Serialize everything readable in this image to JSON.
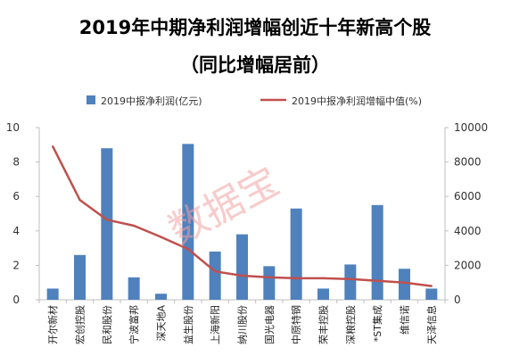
{
  "chart_data": {
    "type": "bar",
    "title": "2019年中期净利润增幅创近十年新高个股",
    "subtitle": "（同比增幅居前）",
    "categories": [
      "开尔新材",
      "宏创控股",
      "民和股份",
      "宁波富邦",
      "深天地A",
      "益生股份",
      "上海新阳",
      "纳川股份",
      "国光电器",
      "中原特钢",
      "荣丰控股",
      "深粮控股",
      "*ST集成",
      "维信诺",
      "天泽信息"
    ],
    "series": [
      {
        "name": "2019中报净利润(亿元)",
        "type": "bar",
        "axis": "left",
        "color": "#4f81bd",
        "values": [
          0.65,
          2.6,
          8.8,
          1.3,
          0.35,
          9.05,
          2.8,
          3.8,
          1.95,
          5.3,
          0.65,
          2.05,
          5.5,
          1.8,
          0.65
        ]
      },
      {
        "name": "2019中报净利润增幅中值(%)",
        "type": "line",
        "axis": "right",
        "color": "#c0504d",
        "values": [
          8900,
          5800,
          4650,
          4300,
          3650,
          2950,
          1650,
          1400,
          1300,
          1250,
          1250,
          1200,
          1100,
          1000,
          800
        ]
      }
    ],
    "ylim_left": [
      0,
      10
    ],
    "yticks_left": [
      "0",
      "2",
      "4",
      "6",
      "8",
      "10"
    ],
    "ylim_right": [
      0,
      10000
    ],
    "yticks_right": [
      "0",
      "2000",
      "4000",
      "6000",
      "8000",
      "10000"
    ],
    "legend_position": "top-center",
    "grid": false
  },
  "watermark": "数据宝",
  "colors": {
    "bar": "#4f81bd",
    "line": "#c0504d",
    "axis": "#bfbfbf",
    "watermark": "#f2a0a0"
  }
}
